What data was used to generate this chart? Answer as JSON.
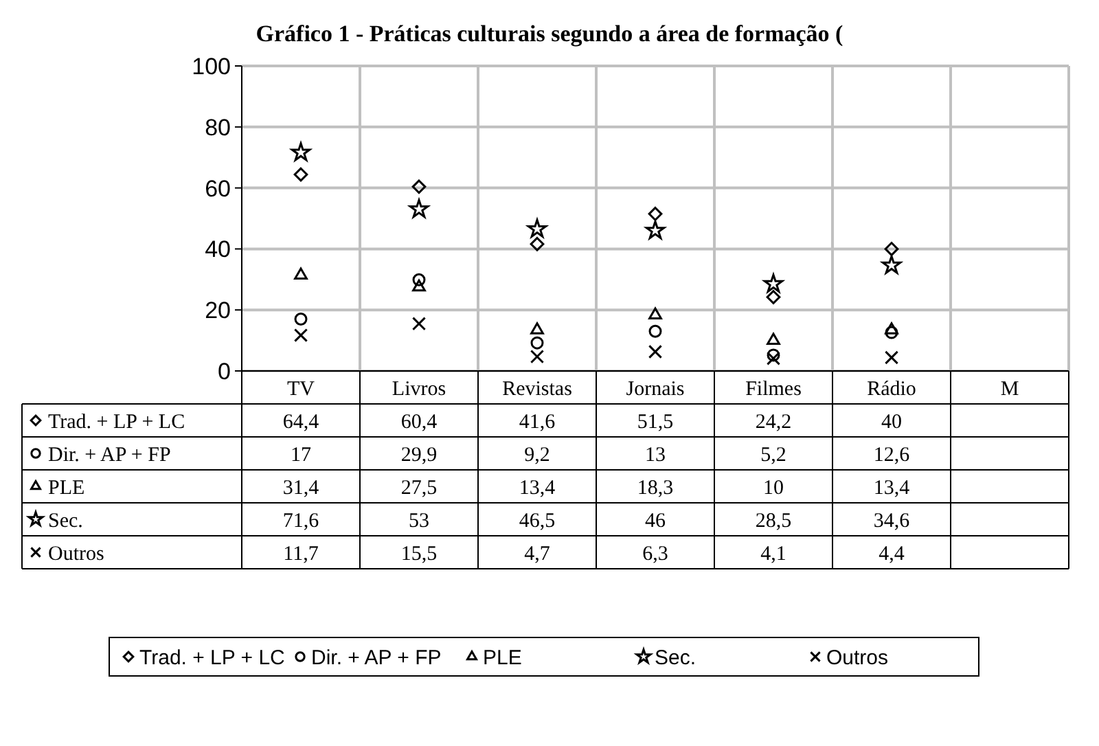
{
  "chart_data": {
    "type": "scatter",
    "title": "Gráfico 1 - Práticas culturais segundo a área de formação (",
    "categories": [
      "TV",
      "Livros",
      "Revistas",
      "Jornais",
      "Filmes",
      "Rádio",
      "M"
    ],
    "series": [
      {
        "name": "Trad. + LP + LC",
        "color": "#000000",
        "marker": "diamond",
        "values": [
          64.4,
          60.4,
          41.6,
          51.5,
          24.2,
          40,
          null
        ],
        "value_labels": [
          "64,4",
          "60,4",
          "41,6",
          "51,5",
          "24,2",
          "40",
          null
        ]
      },
      {
        "name": "Dir. + AP + FP",
        "color": "#000000",
        "marker": "circle",
        "values": [
          17,
          29.9,
          9.2,
          13,
          5.2,
          12.6,
          null
        ],
        "value_labels": [
          "17",
          "29,9",
          "9,2",
          "13",
          "5,2",
          "12,6",
          null
        ]
      },
      {
        "name": "PLE",
        "color": "#000000",
        "marker": "triangle",
        "values": [
          31.4,
          27.5,
          13.4,
          18.3,
          10,
          13.4,
          null
        ],
        "value_labels": [
          "31,4",
          "27,5",
          "13,4",
          "18,3",
          "10",
          "13,4",
          null
        ]
      },
      {
        "name": "Sec.",
        "color": "#000000",
        "marker": "star",
        "values": [
          71.6,
          53,
          46.5,
          46,
          28.5,
          34.6,
          null
        ],
        "value_labels": [
          "71,6",
          "53",
          "46,5",
          "46",
          "28,5",
          "34,6",
          null
        ]
      },
      {
        "name": "Outros",
        "color": "#000000",
        "marker": "cross",
        "values": [
          11.7,
          15.5,
          4.7,
          6.3,
          4.1,
          4.4,
          null
        ],
        "value_labels": [
          "11,7",
          "15,5",
          "4,7",
          "6,3",
          "4,1",
          "4,4",
          null
        ]
      }
    ],
    "ylim": [
      0,
      100
    ],
    "yticks": [
      0,
      20,
      40,
      60,
      80,
      100
    ],
    "grid": true,
    "legend": "bottom"
  }
}
